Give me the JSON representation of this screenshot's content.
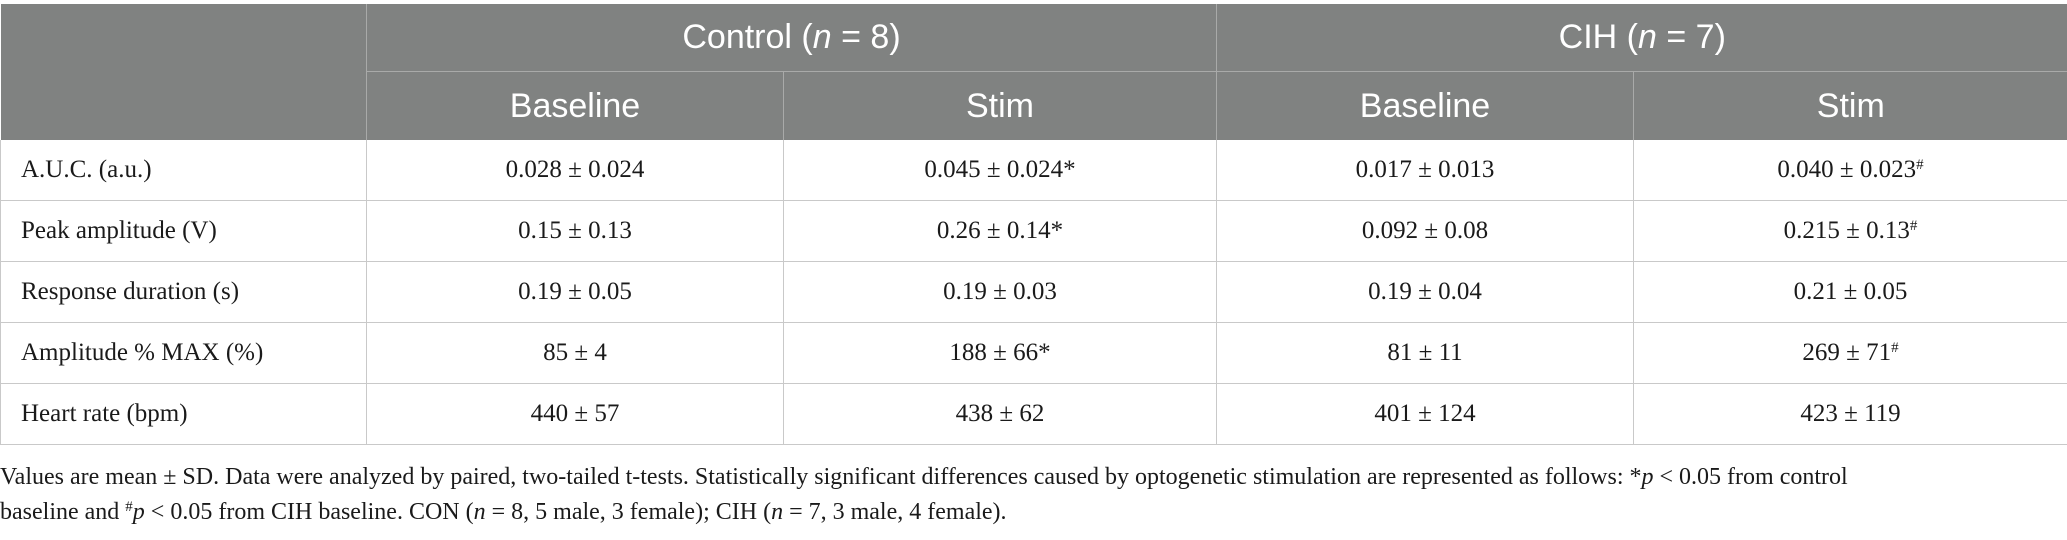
{
  "header": {
    "groups": [
      {
        "name": "Control",
        "n_prefix": "(",
        "n_italic": "n",
        "n_suffix": " = 8)"
      },
      {
        "name": "CIH",
        "n_prefix": "(",
        "n_italic": "n",
        "n_suffix": " = 7)"
      }
    ],
    "subheaders": [
      "Baseline",
      "Stim",
      "Baseline",
      "Stim"
    ]
  },
  "rows": [
    {
      "label": "A.U.C. (a.u.)",
      "cells": [
        {
          "value": "0.028 ± 0.024",
          "mark": ""
        },
        {
          "value": "0.045 ± 0.024*",
          "mark": ""
        },
        {
          "value": "0.017 ± 0.013",
          "mark": ""
        },
        {
          "value": "0.040 ± 0.023",
          "mark": "#"
        }
      ]
    },
    {
      "label": "Peak amplitude (V)",
      "cells": [
        {
          "value": "0.15 ± 0.13",
          "mark": ""
        },
        {
          "value": "0.26 ± 0.14*",
          "mark": ""
        },
        {
          "value": "0.092 ± 0.08",
          "mark": ""
        },
        {
          "value": "0.215 ± 0.13",
          "mark": "#"
        }
      ]
    },
    {
      "label": "Response duration (s)",
      "cells": [
        {
          "value": "0.19 ± 0.05",
          "mark": ""
        },
        {
          "value": "0.19 ± 0.03",
          "mark": ""
        },
        {
          "value": "0.19 ± 0.04",
          "mark": ""
        },
        {
          "value": "0.21 ± 0.05",
          "mark": ""
        }
      ]
    },
    {
      "label": "Amplitude % MAX (%)",
      "cells": [
        {
          "value": "85 ± 4",
          "mark": ""
        },
        {
          "value": "188 ± 66*",
          "mark": ""
        },
        {
          "value": "81 ± 11",
          "mark": ""
        },
        {
          "value": "269 ± 71",
          "mark": "#"
        }
      ]
    },
    {
      "label": "Heart rate (bpm)",
      "cells": [
        {
          "value": "440 ± 57",
          "mark": ""
        },
        {
          "value": "438 ± 62",
          "mark": ""
        },
        {
          "value": "401 ± 124",
          "mark": ""
        },
        {
          "value": "423 ± 119",
          "mark": ""
        }
      ]
    }
  ],
  "footnote": {
    "line1_a": "Values are mean ± SD. Data were analyzed by paired, two-tailed t-tests. Statistically significant differences caused by optogenetic stimulation are represented as follows: *",
    "p1": "p",
    "line1_b": " < 0.05 from control",
    "line2_a": "baseline and ",
    "hash": "#",
    "p2": "p",
    "line2_b": " < 0.05 from CIH baseline. CON (",
    "n1": "n",
    "line2_c": " = 8, 5 male, 3 female); CIH (",
    "n2": "n",
    "line2_d": " = 7, 3 male, 4 female)."
  }
}
